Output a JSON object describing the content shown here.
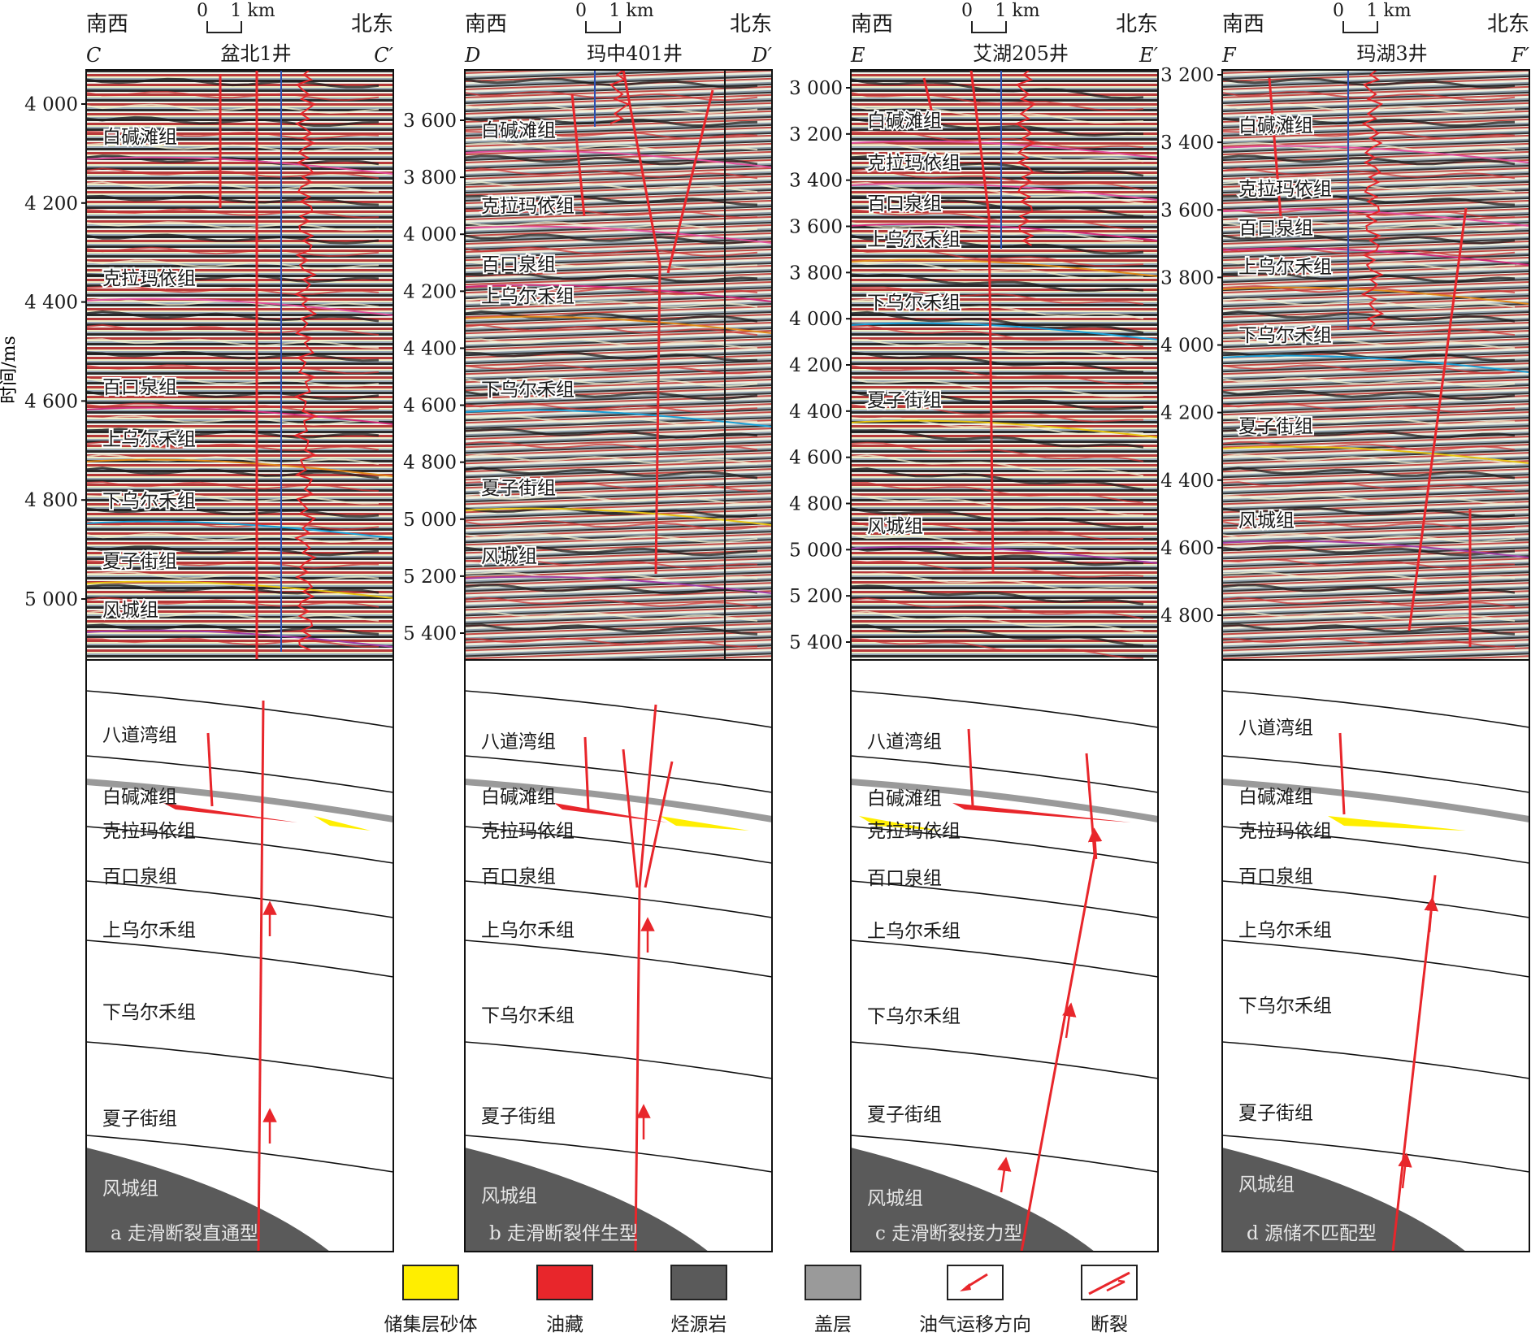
{
  "panels": [
    {
      "left_dir": "南西",
      "right_dir": "北东",
      "scale": {
        "zero": "0",
        "unit": "1 km"
      },
      "line_start": "C",
      "line_end": "C′",
      "well": "盆北1井",
      "time_ticks": [
        "4 000",
        "4 200",
        "4 400",
        "4 600",
        "4 800",
        "5 000"
      ],
      "seismic_labels": [
        "白碱滩组",
        "克拉玛依组",
        "百口泉组",
        "上乌尔禾组",
        "下乌尔禾组",
        "夏子街组",
        "风城组"
      ],
      "model_labels": [
        "八道湾组",
        "白碱滩组",
        "克拉玛依组",
        "百口泉组",
        "上乌尔禾组",
        "下乌尔禾组",
        "夏子街组",
        "风城组"
      ],
      "caption": "a 走滑断裂直通型"
    },
    {
      "left_dir": "南西",
      "right_dir": "北东",
      "scale": {
        "zero": "0",
        "unit": "1 km"
      },
      "line_start": "D",
      "line_end": "D′",
      "well": "玛中401井",
      "time_ticks": [
        "3 600",
        "3 800",
        "4 000",
        "4 200",
        "4 400",
        "4 600",
        "4 800",
        "5 000",
        "5 200",
        "5 400"
      ],
      "seismic_labels": [
        "白碱滩组",
        "克拉玛依组",
        "百口泉组",
        "上乌尔禾组",
        "下乌尔禾组",
        "夏子街组",
        "风城组"
      ],
      "model_labels": [
        "八道湾组",
        "白碱滩组",
        "克拉玛依组",
        "百口泉组",
        "上乌尔禾组",
        "下乌尔禾组",
        "夏子街组",
        "风城组"
      ],
      "caption": "b 走滑断裂伴生型"
    },
    {
      "left_dir": "南西",
      "right_dir": "北东",
      "scale": {
        "zero": "0",
        "unit": "1 km"
      },
      "line_start": "E",
      "line_end": "E′",
      "well": "艾湖205井",
      "time_ticks": [
        "3 000",
        "3 200",
        "3 400",
        "3 600",
        "3 800",
        "4 000",
        "4 200",
        "4 400",
        "4 600",
        "4 800",
        "5 000",
        "5 200",
        "5 400"
      ],
      "seismic_labels": [
        "白碱滩组",
        "克拉玛依组",
        "百口泉组",
        "上乌尔禾组",
        "下乌尔禾组",
        "夏子街组",
        "风城组"
      ],
      "model_labels": [
        "八道湾组",
        "白碱滩组",
        "克拉玛依组",
        "百口泉组",
        "上乌尔禾组",
        "下乌尔禾组",
        "夏子街组",
        "风城组"
      ],
      "caption": "c 走滑断裂接力型"
    },
    {
      "left_dir": "南西",
      "right_dir": "北东",
      "scale": {
        "zero": "0",
        "unit": "1 km"
      },
      "line_start": "F",
      "line_end": "F′",
      "well": "玛湖3井",
      "time_ticks": [
        "3 200",
        "3 400",
        "3 600",
        "3 800",
        "4 000",
        "4 200",
        "4 400",
        "4 600",
        "4 800"
      ],
      "seismic_labels": [
        "白碱滩组",
        "克拉玛依组",
        "百口泉组",
        "上乌尔禾组",
        "下乌尔禾组",
        "夏子街组",
        "风城组"
      ],
      "model_labels": [
        "八道湾组",
        "白碱滩组",
        "克拉玛依组",
        "百口泉组",
        "上乌尔禾组",
        "下乌尔禾组",
        "夏子街组",
        "风城组"
      ],
      "caption": "d 源储不匹配型"
    }
  ],
  "y_axis_label": "时间/ms",
  "legend": [
    {
      "label": "储集层砂体",
      "color": "#ffee00"
    },
    {
      "label": "油藏",
      "color": "#e8262b"
    },
    {
      "label": "烃源岩",
      "color": "#5a5a5a"
    },
    {
      "label": "盖层",
      "color": "#9a9a9a"
    },
    {
      "label": "油气运移方向",
      "icon": "migration-arrow-icon"
    },
    {
      "label": "断裂",
      "icon": "fault-icon"
    }
  ],
  "colors": {
    "fault": "#e8262b",
    "reservoir_sand": "#ffee00",
    "oil_pool": "#e8262b",
    "source_rock": "#5a5a5a",
    "cap_rock": "#9a9a9a"
  }
}
